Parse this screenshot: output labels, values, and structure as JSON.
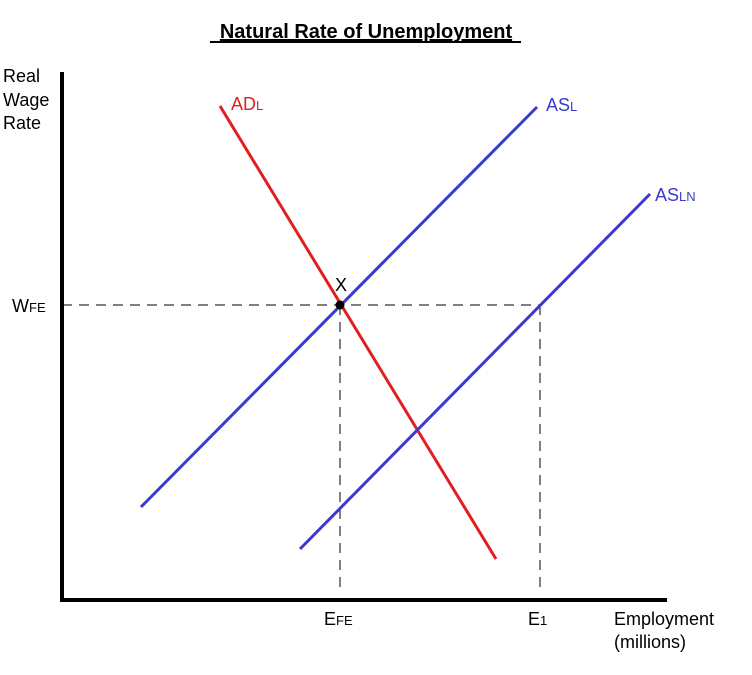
{
  "title": "Natural Rate of Unemployment",
  "y_axis_label": [
    "Real",
    "Wage",
    "Rate"
  ],
  "x_axis_label": [
    "Employment",
    "(millions)"
  ],
  "curves": {
    "ad": {
      "main": "AD",
      "sub": "L",
      "color": "#e02020"
    },
    "as": {
      "main": "AS",
      "sub": "L",
      "color": "#3a3ad0"
    },
    "asn": {
      "main": "AS",
      "sub": "LN",
      "color": "#3a3ad0"
    }
  },
  "wage_label": {
    "main": "W",
    "sub": "FE"
  },
  "employment_labels": {
    "efe": {
      "main": "E",
      "sub": "FE"
    },
    "e1": {
      "main": "E",
      "sub": "1"
    }
  },
  "point_label": "X"
}
